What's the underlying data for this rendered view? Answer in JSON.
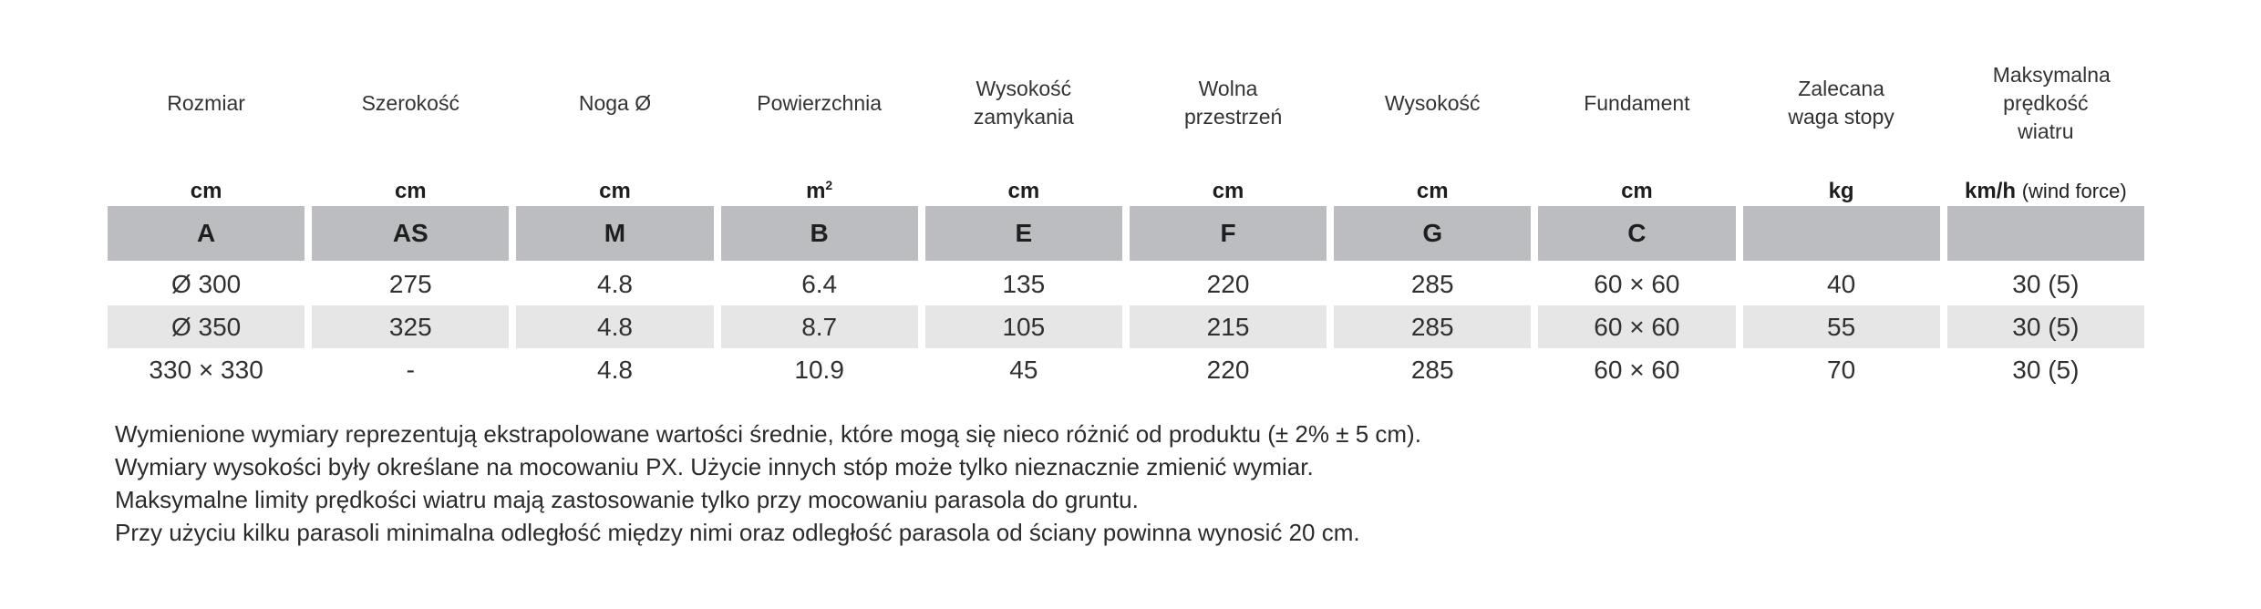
{
  "table": {
    "headers": [
      "Rozmiar",
      "Szerokość",
      "Noga Ø",
      "Powierzchnia",
      "Wysokość zamykania",
      "Wolna przestrzeń",
      "Wysokość",
      "Fundament",
      "Zalecana waga stopy",
      "Maksymalna prędkość wiatru"
    ],
    "units": [
      "cm",
      "cm",
      "cm",
      "m",
      "cm",
      "cm",
      "cm",
      "cm",
      "kg",
      "km/h"
    ],
    "unit_superscript_area": "2",
    "unit_extra_wind": "(wind force)",
    "codes": [
      "A",
      "AS",
      "M",
      "B",
      "E",
      "F",
      "G",
      "C",
      "",
      ""
    ],
    "rows": [
      [
        "Ø 300",
        "275",
        "4.8",
        "6.4",
        "135",
        "220",
        "285",
        "60 × 60",
        "40",
        "30 (5)"
      ],
      [
        "Ø 350",
        "325",
        "4.8",
        "8.7",
        "105",
        "215",
        "285",
        "60 × 60",
        "55",
        "30 (5)"
      ],
      [
        "330 × 330",
        "-",
        "4.8",
        "10.9",
        "45",
        "220",
        "285",
        "60 × 60",
        "70",
        "30 (5)"
      ]
    ]
  },
  "notes": [
    "Wymienione wymiary reprezentują ekstrapolowane wartości średnie, które mogą się nieco różnić od produktu (± 2% ± 5 cm).",
    "Wymiary wysokości były określane na mocowaniu PX. Użycie innych stóp może tylko nieznacznie zmienić wymiar.",
    "Maksymalne limity prędkości wiatru mają zastosowanie tylko przy mocowaniu parasola do gruntu.",
    "Przy użyciu kilku parasoli minimalna odległość między nimi oraz odległość parasola od ściany powinna wynosić 20 cm."
  ]
}
